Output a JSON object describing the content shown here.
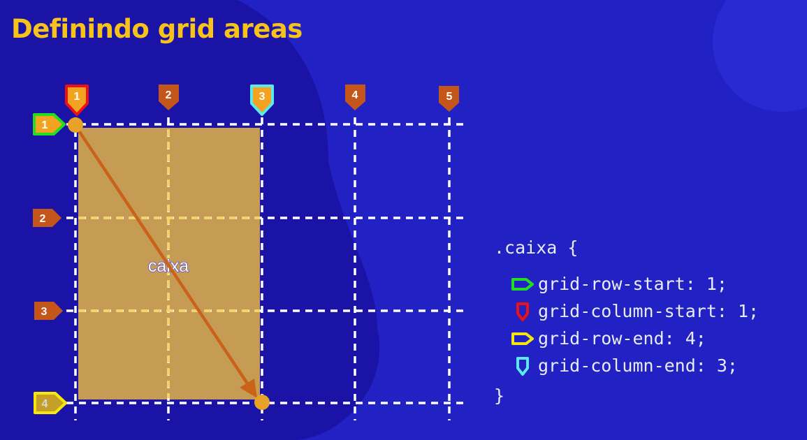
{
  "slide": {
    "title": "Definindo grid areas",
    "box_label": "caixa"
  },
  "column_markers": [
    "1",
    "2",
    "3",
    "4",
    "5"
  ],
  "row_markers": [
    "1",
    "2",
    "3",
    "4"
  ],
  "code": {
    "selector": ".caixa {",
    "closing": "}",
    "properties": [
      {
        "text": "grid-row-start: 1;",
        "icon": "green-pentagon-marker-icon"
      },
      {
        "text": "grid-column-start: 1;",
        "icon": "red-pentagon-marker-icon"
      },
      {
        "text": "grid-row-end: 4;",
        "icon": "yellow-pentagon-marker-icon"
      },
      {
        "text": "grid-column-end: 3;",
        "icon": "cyan-pentagon-marker-icon"
      }
    ]
  },
  "colors": {
    "background": "#2121c4",
    "blob": "#1a13a6",
    "title": "#f7c31a",
    "marker": "#c4551b",
    "box": "#c69b53",
    "arrow": "#c9631a",
    "highlight_green": "#22dd22",
    "highlight_red": "#ee1111",
    "highlight_yellow": "#f5e70c",
    "highlight_cyan": "#5ce8ef",
    "code_text": "#e8ecf6"
  }
}
